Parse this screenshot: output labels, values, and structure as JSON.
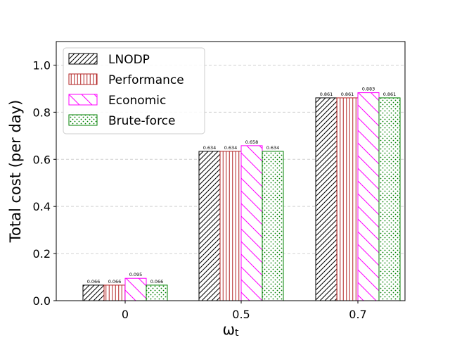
{
  "chart_data": {
    "type": "bar",
    "categories": [
      "0",
      "0.5",
      "0.7"
    ],
    "series": [
      {
        "name": "LNODP",
        "values": [
          0.066,
          0.634,
          0.861
        ],
        "labels": [
          "0.066",
          "0.634",
          "0.861"
        ],
        "color": "#000000",
        "hatch": "diagonal-forward"
      },
      {
        "name": "Performance",
        "values": [
          0.066,
          0.634,
          0.861
        ],
        "labels": [
          "0.066",
          "0.634",
          "0.861"
        ],
        "color": "#b22222",
        "hatch": "vertical"
      },
      {
        "name": "Economic",
        "values": [
          0.095,
          0.658,
          0.883
        ],
        "labels": [
          "0.095",
          "0.658",
          "0.883"
        ],
        "color": "#ff00ff",
        "hatch": "diagonal-back"
      },
      {
        "name": "Brute-force",
        "values": [
          0.066,
          0.634,
          0.861
        ],
        "labels": [
          "0.066",
          "0.634",
          "0.861"
        ],
        "color": "#008000",
        "hatch": "dots"
      }
    ],
    "xlabel": "ω",
    "xlabel_sub": "t",
    "ylabel": "Total cost (per day)",
    "ylim": [
      0,
      1.1
    ],
    "yticks": [
      0.0,
      0.2,
      0.4,
      0.6,
      0.8,
      1.0
    ],
    "ytick_labels": [
      "0.0",
      "0.2",
      "0.4",
      "0.6",
      "0.8",
      "1.0"
    ],
    "grid": "y-dashed",
    "legend_position": "top-left"
  }
}
